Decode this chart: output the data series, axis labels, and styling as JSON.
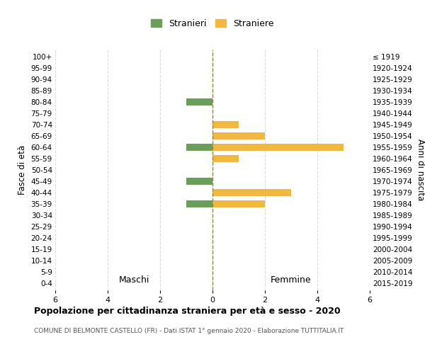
{
  "age_groups": [
    "100+",
    "95-99",
    "90-94",
    "85-89",
    "80-84",
    "75-79",
    "70-74",
    "65-69",
    "60-64",
    "55-59",
    "50-54",
    "45-49",
    "40-44",
    "35-39",
    "30-34",
    "25-29",
    "20-24",
    "15-19",
    "10-14",
    "5-9",
    "0-4"
  ],
  "birth_years": [
    "≤ 1919",
    "1920-1924",
    "1925-1929",
    "1930-1934",
    "1935-1939",
    "1940-1944",
    "1945-1949",
    "1950-1954",
    "1955-1959",
    "1960-1964",
    "1965-1969",
    "1970-1974",
    "1975-1979",
    "1980-1984",
    "1985-1989",
    "1990-1994",
    "1995-1999",
    "2000-2004",
    "2005-2009",
    "2010-2014",
    "2015-2019"
  ],
  "males": [
    0,
    0,
    0,
    0,
    1,
    0,
    0,
    0,
    1,
    0,
    0,
    1,
    0,
    1,
    0,
    0,
    0,
    0,
    0,
    0,
    0
  ],
  "females": [
    0,
    0,
    0,
    0,
    0,
    0,
    1,
    2,
    5,
    1,
    0,
    0,
    3,
    2,
    0,
    0,
    0,
    0,
    0,
    0,
    0
  ],
  "male_color": "#6a9e5a",
  "female_color": "#f0b840",
  "grid_color": "#dddddd",
  "zero_line_color": "#8b8b4b",
  "title": "Popolazione per cittadinanza straniera per età e sesso - 2020",
  "subtitle": "COMUNE DI BELMONTE CASTELLO (FR) - Dati ISTAT 1° gennaio 2020 - Elaborazione TUTTITALIA.IT",
  "ylabel_left": "Fasce di età",
  "ylabel_right": "Anni di nascita",
  "legend_male": "Stranieri",
  "legend_female": "Straniere",
  "xlim": 6,
  "maschi_label": "Maschi",
  "femmine_label": "Femmine"
}
